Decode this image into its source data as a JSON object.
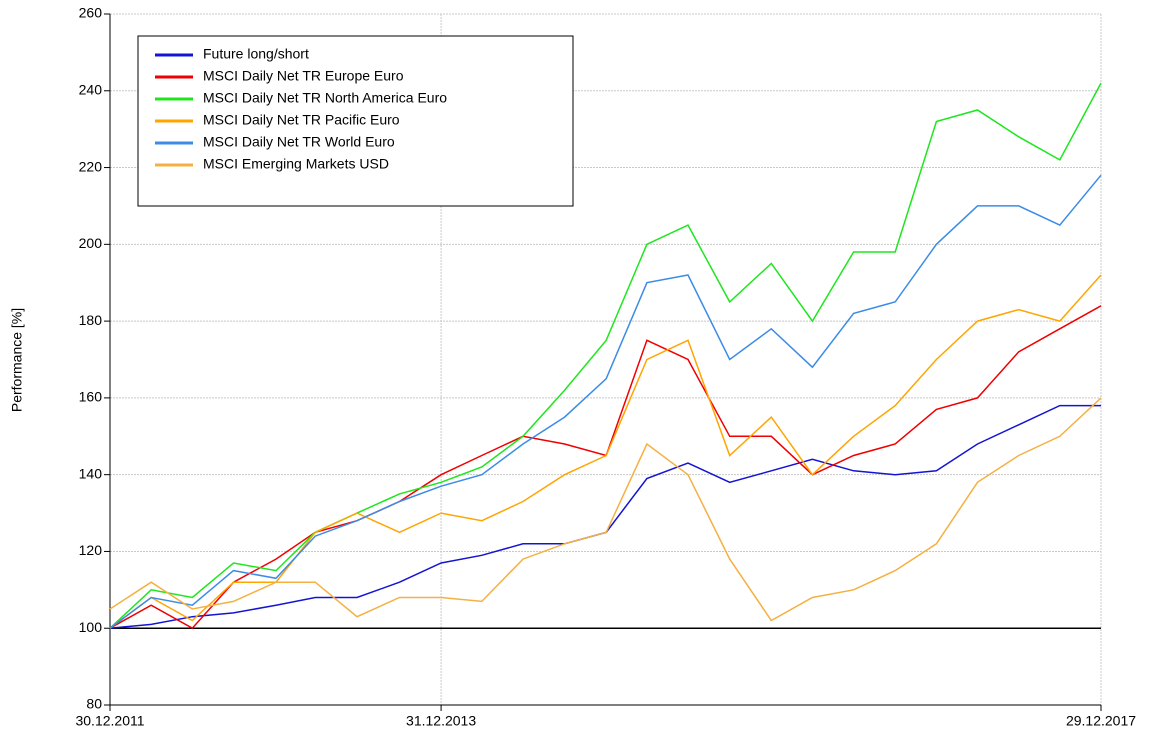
{
  "chart_data": {
    "type": "line",
    "y_label": "Performance [%]",
    "x": [
      "2011-12-30",
      "2012-03-30",
      "2012-06-29",
      "2012-09-28",
      "2012-12-31",
      "2013-03-28",
      "2013-06-28",
      "2013-09-30",
      "2013-12-31",
      "2014-03-31",
      "2014-06-30",
      "2014-09-30",
      "2014-12-31",
      "2015-03-31",
      "2015-06-30",
      "2015-09-30",
      "2015-12-31",
      "2016-03-31",
      "2016-06-30",
      "2016-09-30",
      "2016-12-30",
      "2017-03-31",
      "2017-06-30",
      "2017-09-29",
      "2017-12-29"
    ],
    "series": [
      {
        "name": "Future long/short",
        "color": "#1414d2",
        "values": [
          100,
          101,
          103,
          104,
          106,
          108,
          108,
          112,
          117,
          119,
          122,
          122,
          125,
          139,
          143,
          138,
          141,
          144,
          141,
          140,
          141,
          148,
          153,
          158,
          158
        ]
      },
      {
        "name": "MSCI Daily Net TR Europe Euro",
        "color": "#f00000",
        "values": [
          100,
          106,
          100,
          112,
          118,
          125,
          128,
          133,
          140,
          145,
          150,
          148,
          145,
          175,
          170,
          150,
          150,
          140,
          145,
          148,
          157,
          160,
          172,
          178,
          184
        ]
      },
      {
        "name": "MSCI Daily Net TR North America Euro",
        "color": "#1ee61e",
        "values": [
          100,
          110,
          108,
          117,
          115,
          125,
          130,
          135,
          138,
          142,
          150,
          162,
          175,
          200,
          205,
          185,
          195,
          180,
          198,
          198,
          232,
          235,
          228,
          222,
          242
        ]
      },
      {
        "name": "MSCI Daily Net TR Pacific Euro",
        "color": "#ffa500",
        "values": [
          100,
          108,
          102,
          112,
          112,
          125,
          130,
          125,
          130,
          128,
          133,
          140,
          145,
          170,
          175,
          145,
          155,
          140,
          150,
          158,
          170,
          180,
          183,
          180,
          192
        ]
      },
      {
        "name": "MSCI Daily Net TR World Euro",
        "color": "#3c8ce6",
        "values": [
          100,
          108,
          106,
          115,
          113,
          124,
          128,
          133,
          137,
          140,
          148,
          155,
          165,
          190,
          192,
          170,
          178,
          168,
          182,
          185,
          200,
          210,
          210,
          205,
          218
        ]
      },
      {
        "name": "MSCI Emerging Markets USD",
        "color": "#f5b042",
        "values": [
          105,
          112,
          105,
          107,
          112,
          112,
          103,
          108,
          108,
          107,
          118,
          122,
          125,
          148,
          140,
          118,
          102,
          108,
          110,
          115,
          122,
          138,
          145,
          150,
          160
        ]
      }
    ],
    "hline": 100,
    "xlim": [
      "2011-12-30",
      "2017-12-29"
    ],
    "xticks": [
      {
        "value": "2011-12-30",
        "label": "30.12.2011"
      },
      {
        "value": "2013-12-31",
        "label": "31.12.2013"
      },
      {
        "value": "2017-12-29",
        "label": "29.12.2017"
      }
    ],
    "ylim": [
      80,
      260
    ],
    "yticks": [
      80,
      100,
      120,
      140,
      160,
      180,
      200,
      220,
      240,
      260
    ],
    "grid": true,
    "legend": "upper left"
  }
}
